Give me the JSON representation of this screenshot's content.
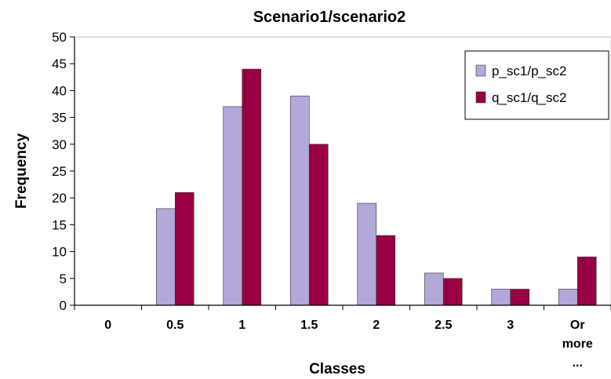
{
  "chart_data": {
    "type": "bar",
    "title": "Scenario1/scenario2",
    "xlabel": "Classes",
    "ylabel": "Frequency",
    "ylim": [
      0,
      50
    ],
    "yticks": [
      0,
      5,
      10,
      15,
      20,
      25,
      30,
      35,
      40,
      45,
      50
    ],
    "categories": [
      "0",
      "0.5",
      "1",
      "1.5",
      "2",
      "2.5",
      "3",
      "Or more ..."
    ],
    "category_lines": [
      [
        "0"
      ],
      [
        "0.5"
      ],
      [
        "1"
      ],
      [
        "1.5"
      ],
      [
        "2"
      ],
      [
        "2.5"
      ],
      [
        "3"
      ],
      [
        "Or",
        "more",
        "..."
      ]
    ],
    "series": [
      {
        "name": "p_sc1/p_sc2",
        "color": "#b3a8d9",
        "values": [
          0,
          18,
          37,
          39,
          19,
          6,
          3,
          3
        ]
      },
      {
        "name": "q_sc1/q_sc2",
        "color": "#990044",
        "values": [
          0,
          21,
          44,
          30,
          13,
          5,
          3,
          9
        ]
      }
    ],
    "legend_position": "top-right",
    "grid": false
  }
}
